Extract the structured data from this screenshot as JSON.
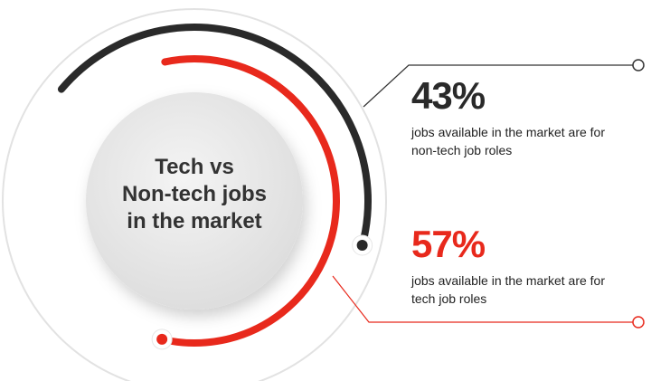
{
  "chart_data": {
    "type": "radial-bar",
    "title_lines": [
      "Tech vs",
      "Non-tech jobs",
      "in the market"
    ],
    "series": [
      {
        "name": "jobs available in the market are for non-tech job roles",
        "color": "#2a2a2a",
        "values": [
          43
        ],
        "value_labels": [
          "43%"
        ]
      },
      {
        "name": "jobs available in the market are for tech job roles",
        "color": "#e8291c",
        "values": [
          57
        ],
        "value_labels": [
          "57%"
        ]
      }
    ]
  }
}
